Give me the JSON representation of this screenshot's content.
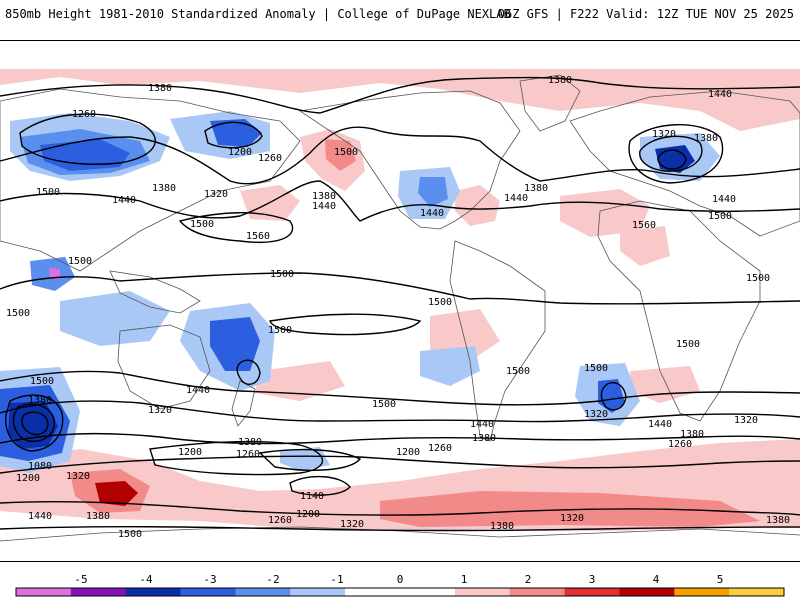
{
  "header": {
    "title": "850mb Height 1981-2010 Standardized Anomaly | College of DuPage NEXLAB",
    "run_info": "06Z GFS | F222 Valid: 12Z TUE NOV 25 2025"
  },
  "contour_labels": [
    "1380",
    "1260",
    "1200",
    "1260",
    "1500",
    "1380",
    "1320",
    "1440",
    "1500",
    "1560",
    "1500",
    "1500",
    "1380",
    "1440",
    "1500",
    "1440",
    "1500",
    "1500",
    "1380",
    "1440",
    "1500",
    "1500",
    "1380",
    "1440",
    "1320",
    "1380",
    "1440",
    "1500",
    "1560",
    "1500",
    "1500",
    "1500",
    "1380",
    "1080",
    "1200",
    "1320",
    "1440",
    "1380",
    "1440",
    "1320",
    "1500",
    "1380",
    "1260",
    "1200",
    "1200",
    "1260",
    "1140",
    "1260",
    "1200",
    "1320",
    "1440",
    "1380",
    "1500",
    "1320",
    "1440",
    "1380",
    "1260",
    "1320",
    "1380",
    "1320",
    "1380",
    "1500"
  ],
  "colorbar": {
    "ticks": [
      "-5",
      "-4",
      "-3",
      "-2",
      "-1",
      "0",
      "1",
      "2",
      "3",
      "4",
      "5"
    ],
    "colors": [
      "#e070e0",
      "#8a10b8",
      "#0a2fa8",
      "#2c5fe0",
      "#5a8ff0",
      "#a9c8f5",
      "#ffffff",
      "#ffffff",
      "#f9c8c8",
      "#f28a8a",
      "#e03030",
      "#b00000",
      "#f5a000",
      "#f8d040"
    ]
  }
}
